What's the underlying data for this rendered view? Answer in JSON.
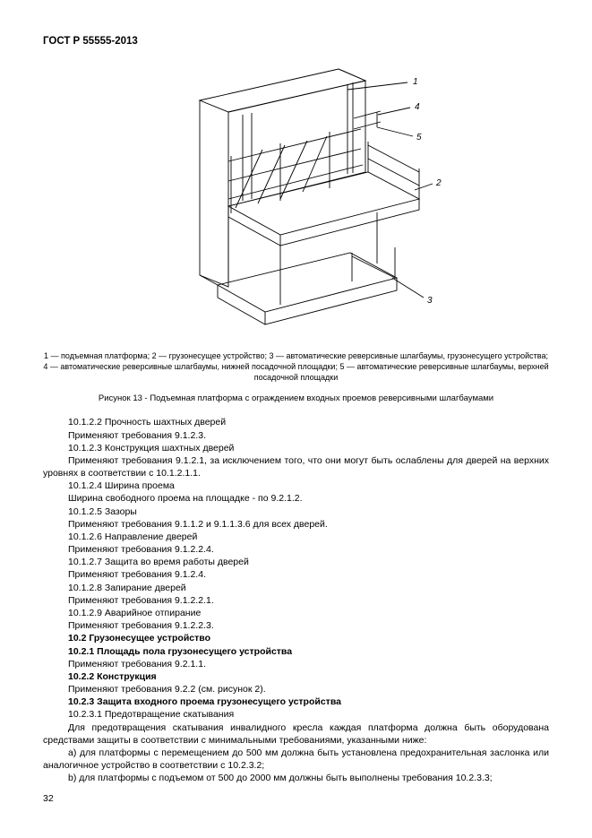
{
  "meta": {
    "doc_title": "ГОСТ Р 55555-2013",
    "page_number": "32"
  },
  "figure": {
    "callouts": [
      "1",
      "4",
      "5",
      "2",
      "3"
    ],
    "legend": "1 — подъемная платформа; 2 — грузонесущее устройство; 3 — автоматические реверсивные шлагбаумы, грузонесущего устройства; 4 — автоматические реверсивные шлагбаумы, нижней посадочной площадки; 5 — автоматические реверсивные шлагбаумы, верхней посадочной площадки",
    "caption": "Рисунок 13 - Подъемная платформа с ограждением входных проемов реверсивными шлагбаумами"
  },
  "lines": [
    {
      "t": "10.1.2.2 Прочность шахтных дверей",
      "b": false,
      "j": false
    },
    {
      "t": "Применяют требования 9.1.2.3.",
      "b": false,
      "j": false
    },
    {
      "t": "10.1.2.3 Конструкция шахтных дверей",
      "b": false,
      "j": false
    },
    {
      "t": "Применяют требования 9.1.2.1, за исключением того, что они могут быть ослаблены для дверей на верхних уровнях в соответствии с 10.1.2.1.1.",
      "b": false,
      "j": true,
      "noindent2": true
    },
    {
      "t": "10.1.2.4 Ширина проема",
      "b": false,
      "j": false
    },
    {
      "t": "Ширина свободного проема на площадке - по 9.2.1.2.",
      "b": false,
      "j": false
    },
    {
      "t": "10.1.2.5 Зазоры",
      "b": false,
      "j": false
    },
    {
      "t": "Применяют требования 9.1.1.2 и 9.1.1.3.6 для всех дверей.",
      "b": false,
      "j": false
    },
    {
      "t": "10.1.2.6 Направление дверей",
      "b": false,
      "j": false
    },
    {
      "t": "Применяют требования 9.1.2.2.4.",
      "b": false,
      "j": false
    },
    {
      "t": "10.1.2.7 Защита во время работы дверей",
      "b": false,
      "j": false
    },
    {
      "t": "Применяют требования 9.1.2.4.",
      "b": false,
      "j": false
    },
    {
      "t": "10.1.2.8 Запирание дверей",
      "b": false,
      "j": false
    },
    {
      "t": "Применяют требования 9.1.2.2.1.",
      "b": false,
      "j": false
    },
    {
      "t": "10.1.2.9 Аварийное отпирание",
      "b": false,
      "j": false
    },
    {
      "t": "Применяют требования 9.1.2.2.3.",
      "b": false,
      "j": false
    },
    {
      "t": "10.2 Грузонесущее устройство",
      "b": true,
      "j": false
    },
    {
      "t": "10.2.1 Площадь пола грузонесущего устройства",
      "b": true,
      "j": false
    },
    {
      "t": "Применяют требования 9.2.1.1.",
      "b": false,
      "j": false
    },
    {
      "t": "10.2.2 Конструкция",
      "b": true,
      "j": false
    },
    {
      "t": "Применяют требования 9.2.2 (см. рисунок 2).",
      "b": false,
      "j": false
    },
    {
      "t": "10.2.3 Защита входного проема грузонесущего устройства",
      "b": true,
      "j": false
    },
    {
      "t": "10.2.3.1 Предотвращение скатывания",
      "b": false,
      "j": false
    },
    {
      "t": "Для предотвращения скатывания инвалидного кресла каждая платформа должна быть оборудована средствами защиты в соответствии с минимальными требованиями, указанными ниже:",
      "b": false,
      "j": true,
      "noindent2": true
    },
    {
      "t": "a) для платформы с перемещением до 500 мм должна быть установлена предохранительная заслонка или аналогичное устройство в соответствии с 10.2.3.2;",
      "b": false,
      "j": true,
      "noindent2": true
    },
    {
      "t": "b) для платформы с подъемом от 500 до 2000 мм должны быть выполнены требования 10.2.3.3;",
      "b": false,
      "j": true
    }
  ]
}
